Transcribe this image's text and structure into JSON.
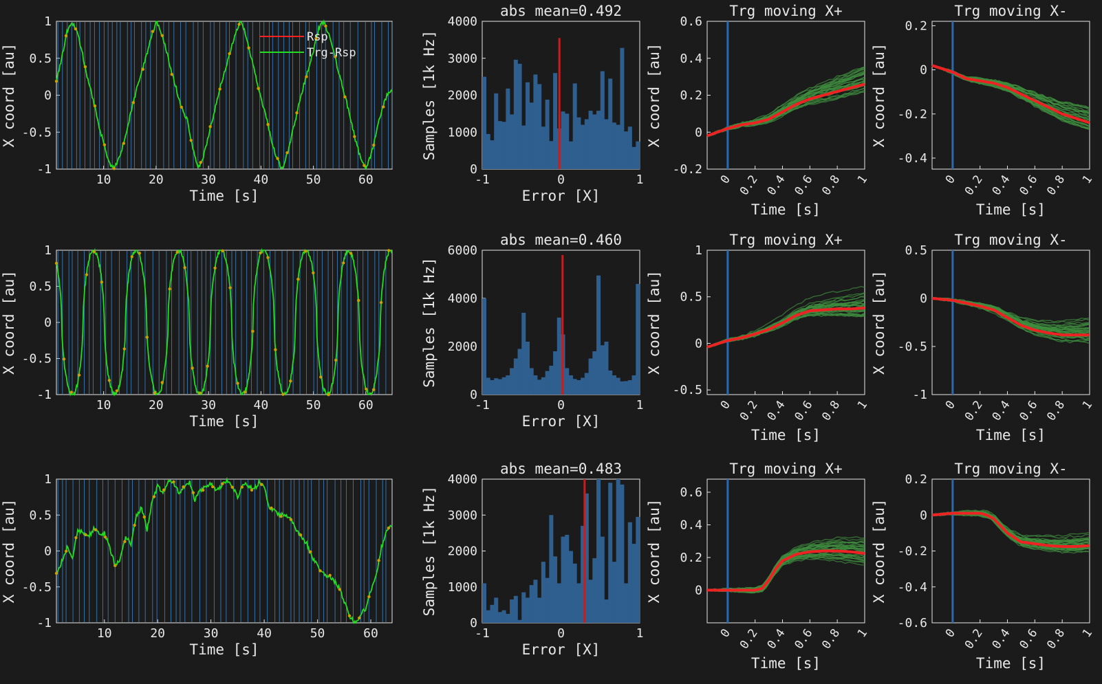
{
  "colors": {
    "background": "#1b1b1b",
    "axis": "#e8e8e8",
    "target_line": "#ff2020",
    "response_line": "#22dd22",
    "sample_marker": "#c8a000",
    "event_line": "#3a7bb8",
    "hist_bar": "#2e5f8e",
    "hist_mean": "#c22020",
    "trial_trace": "#3f8f3f",
    "mean_trace": "#ee2222",
    "onset_line": "#2a6ab0"
  },
  "chart_data": [
    {
      "id": "r1-trace",
      "type": "line",
      "xlabel": "Time [s]",
      "ylabel": "X coord [au]",
      "xlim": [
        1,
        65
      ],
      "ylim": [
        -1,
        1
      ],
      "xticks": [
        10,
        20,
        30,
        40,
        50,
        60
      ],
      "yticks": [
        -1,
        -0.5,
        0,
        0.5,
        1
      ],
      "yticklabels": [
        "-1",
        "-0.5",
        "0",
        "0.5",
        "1"
      ],
      "legend": [
        "Rsp",
        "Trg-Rsp"
      ],
      "legend_position": "top-center",
      "signal": {
        "kind": "triangle",
        "period": 16,
        "phase": 0
      },
      "series": [
        {
          "name": "Trg-Rsp",
          "x": [
            1,
            2,
            3,
            4,
            5,
            6,
            7,
            8,
            9,
            10,
            11,
            12,
            13,
            14,
            15,
            16,
            17,
            18,
            19,
            20,
            21,
            22,
            23,
            24,
            25,
            26,
            27,
            28,
            29,
            30,
            31,
            32,
            33,
            34,
            35,
            36,
            37,
            38,
            39,
            40,
            41,
            42,
            43,
            44,
            45,
            46,
            47,
            48,
            49,
            50,
            51,
            52,
            53,
            54,
            55,
            56,
            57,
            58,
            59,
            60,
            61,
            62,
            63,
            64,
            65
          ],
          "y": [
            0.2,
            0.5,
            0.85,
            1,
            0.85,
            0.55,
            0.2,
            -0.05,
            -0.4,
            -0.65,
            -0.9,
            -1,
            -0.85,
            -0.6,
            -0.3,
            0,
            0.25,
            0.5,
            0.75,
            1,
            0.85,
            0.6,
            0.3,
            0.05,
            -0.2,
            -0.35,
            -0.7,
            -1,
            -0.85,
            -0.55,
            -0.25,
            0.05,
            0.3,
            0.55,
            0.8,
            1,
            0.85,
            0.55,
            0.25,
            -0.05,
            -0.3,
            -0.6,
            -0.85,
            -1,
            -0.8,
            -0.5,
            -0.2,
            0.1,
            0.35,
            0.6,
            0.9,
            1,
            0.8,
            0.55,
            0.25,
            0,
            -0.3,
            -0.6,
            -0.85,
            -1,
            -0.8,
            -0.5,
            -0.2,
            0,
            0.05
          ]
        }
      ]
    },
    {
      "id": "r1-hist",
      "type": "bar",
      "title": "abs mean=0.492",
      "xlabel": "Error [X]",
      "ylabel": "Samples [1k Hz]",
      "xlim": [
        -1,
        1
      ],
      "ylim": [
        0,
        4000
      ],
      "xticks": [
        -1,
        0,
        1
      ],
      "yticks": [
        0,
        1000,
        2000,
        3000,
        4000
      ],
      "bins": 40,
      "values": [
        2500,
        950,
        780,
        2050,
        1300,
        1280,
        2180,
        1480,
        2960,
        2850,
        1180,
        2350,
        1800,
        2560,
        2300,
        1150,
        1880,
        760,
        2600,
        1100,
        1560,
        1500,
        750,
        2320,
        1400,
        1200,
        1350,
        1580,
        1480,
        1580,
        2650,
        1350,
        2450,
        1260,
        1200,
        3280,
        1020,
        1150,
        600,
        750
      ],
      "mean_marker": -0.02,
      "mean_peak": 3550
    },
    {
      "id": "r1-plus",
      "type": "line",
      "title": "Trg moving X+",
      "xlabel": "Time [s]",
      "ylabel": "X coord [au]",
      "xlim": [
        -0.15,
        1
      ],
      "ylim": [
        -0.2,
        0.6
      ],
      "xticks": [
        0,
        0.2,
        0.4,
        0.6,
        0.8,
        1
      ],
      "yticks": [
        -0.2,
        0,
        0.2,
        0.4,
        0.6
      ],
      "onset": 0,
      "mean_x": [
        -0.15,
        0,
        0.1,
        0.2,
        0.3,
        0.4,
        0.5,
        0.6,
        0.7,
        0.8,
        0.9,
        1
      ],
      "mean_y": [
        -0.02,
        0.02,
        0.04,
        0.05,
        0.07,
        0.11,
        0.15,
        0.18,
        0.2,
        0.22,
        0.24,
        0.26
      ],
      "trials": {
        "count": 30,
        "spread": 0.55,
        "seed": 11
      }
    },
    {
      "id": "r1-minus",
      "type": "line",
      "title": "Trg moving X-",
      "xlabel": "Time [s]",
      "ylabel": "X coord [au]",
      "xlim": [
        -0.15,
        1
      ],
      "ylim": [
        -0.45,
        0.22
      ],
      "xticks": [
        0,
        0.2,
        0.4,
        0.6,
        0.8,
        1
      ],
      "yticks": [
        -0.4,
        -0.2,
        0,
        0.2
      ],
      "onset": 0,
      "mean_x": [
        -0.15,
        0,
        0.1,
        0.2,
        0.3,
        0.4,
        0.5,
        0.6,
        0.7,
        0.8,
        0.9,
        1
      ],
      "mean_y": [
        0.02,
        -0.01,
        -0.04,
        -0.05,
        -0.06,
        -0.08,
        -0.11,
        -0.14,
        -0.17,
        -0.2,
        -0.22,
        -0.24
      ],
      "trials": {
        "count": 30,
        "spread": 0.6,
        "seed": 23
      }
    },
    {
      "id": "r2-trace",
      "type": "line",
      "xlabel": "Time [s]",
      "ylabel": "X coord [au]",
      "xlim": [
        1,
        65
      ],
      "ylim": [
        -1,
        1
      ],
      "xticks": [
        10,
        20,
        30,
        40,
        50,
        60
      ],
      "yticks": [
        -1,
        -0.5,
        0,
        0.5,
        1
      ],
      "yticklabels": [
        "-1",
        "-0.5",
        "0",
        "0.5",
        "1"
      ],
      "signal": {
        "kind": "peaked",
        "period": 8.1,
        "phase": 0
      }
    },
    {
      "id": "r2-hist",
      "type": "bar",
      "title": "abs mean=0.460",
      "xlabel": "Error [X]",
      "ylabel": "Samples [1k Hz]",
      "xlim": [
        -1,
        1
      ],
      "ylim": [
        0,
        6000
      ],
      "xticks": [
        -1,
        0,
        1
      ],
      "yticks": [
        0,
        2000,
        4000,
        6000
      ],
      "bins": 40,
      "values": [
        4000,
        700,
        600,
        680,
        640,
        720,
        800,
        1100,
        1500,
        1900,
        3400,
        2200,
        1100,
        800,
        620,
        720,
        980,
        1200,
        1800,
        3200,
        2500,
        1100,
        800,
        650,
        600,
        700,
        900,
        1500,
        1800,
        4950,
        2050,
        2200,
        1000,
        800,
        700,
        550,
        560,
        600,
        800,
        4600
      ],
      "mean_marker": 0.02,
      "mean_peak": 5800
    },
    {
      "id": "r2-plus",
      "type": "line",
      "title": "Trg moving X+",
      "xlabel": "Time [s]",
      "ylabel": "X coord [au]",
      "xlim": [
        -0.15,
        1
      ],
      "ylim": [
        -0.55,
        1
      ],
      "xticks": [
        0,
        0.2,
        0.4,
        0.6,
        0.8,
        1
      ],
      "yticks": [
        -0.5,
        0,
        0.5,
        1
      ],
      "onset": 0,
      "mean_x": [
        -0.15,
        0,
        0.1,
        0.2,
        0.3,
        0.4,
        0.5,
        0.6,
        0.7,
        0.8,
        0.9,
        1
      ],
      "mean_y": [
        -0.04,
        0.03,
        0.06,
        0.1,
        0.15,
        0.22,
        0.3,
        0.35,
        0.36,
        0.37,
        0.37,
        0.38
      ],
      "trials": {
        "count": 30,
        "spread": 0.9,
        "seed": 37
      }
    },
    {
      "id": "r2-minus",
      "type": "line",
      "title": "Trg moving X-",
      "xlabel": "Time [s]",
      "ylabel": "X coord [au]",
      "xlim": [
        -0.15,
        1
      ],
      "ylim": [
        -1,
        0.5
      ],
      "xticks": [
        0,
        0.2,
        0.4,
        0.6,
        0.8,
        1
      ],
      "yticks": [
        -1,
        -0.5,
        0,
        0.5
      ],
      "onset": 0,
      "mean_x": [
        -0.15,
        0,
        0.1,
        0.2,
        0.3,
        0.4,
        0.5,
        0.6,
        0.7,
        0.8,
        0.9,
        1
      ],
      "mean_y": [
        0,
        -0.02,
        -0.05,
        -0.08,
        -0.12,
        -0.2,
        -0.28,
        -0.33,
        -0.36,
        -0.38,
        -0.38,
        -0.38
      ],
      "trials": {
        "count": 30,
        "spread": 0.85,
        "seed": 41
      }
    },
    {
      "id": "r3-trace",
      "type": "line",
      "xlabel": "Time [s]",
      "ylabel": "X coord [au]",
      "xlim": [
        1,
        64
      ],
      "ylim": [
        -1,
        1
      ],
      "xticks": [
        10,
        20,
        30,
        40,
        50,
        60
      ],
      "yticks": [
        -1,
        -0.5,
        0,
        0.5,
        1
      ],
      "yticklabels": [
        "-1",
        "-0.5",
        "0",
        "0.5",
        "1"
      ],
      "series": [
        {
          "name": "Trg-Rsp",
          "x": [
            1,
            2,
            3,
            4,
            5,
            6,
            7,
            8,
            9,
            10,
            11,
            12,
            13,
            14,
            15,
            16,
            17,
            18,
            19,
            20,
            21,
            22,
            23,
            24,
            25,
            26,
            27,
            28,
            29,
            30,
            31,
            32,
            33,
            34,
            35,
            36,
            37,
            38,
            39,
            40,
            41,
            42,
            43,
            44,
            45,
            46,
            47,
            48,
            49,
            50,
            51,
            52,
            53,
            54,
            55,
            56,
            57,
            58,
            59,
            60,
            61,
            62,
            63,
            64
          ],
          "y": [
            -0.3,
            -0.15,
            0.05,
            -0.1,
            0.3,
            0.25,
            0.2,
            0.3,
            0.25,
            0.25,
            0.05,
            -0.2,
            -0.1,
            0.2,
            0.1,
            0.5,
            0.6,
            0.3,
            0.7,
            0.9,
            0.8,
            1,
            0.95,
            0.8,
            0.9,
            0.95,
            0.7,
            0.85,
            0.9,
            0.95,
            0.85,
            0.9,
            1,
            0.9,
            0.75,
            0.95,
            0.9,
            0.85,
            0.95,
            0.9,
            0.6,
            0.55,
            0.5,
            0.5,
            0.45,
            0.3,
            0.2,
            0.1,
            -0.1,
            -0.2,
            -0.3,
            -0.35,
            -0.4,
            -0.5,
            -0.7,
            -0.9,
            -1,
            -0.9,
            -0.8,
            -0.55,
            -0.35,
            0.05,
            0.3,
            0.35
          ]
        }
      ]
    },
    {
      "id": "r3-hist",
      "type": "bar",
      "title": "abs mean=0.483",
      "xlabel": "Error [X]",
      "ylabel": "Samples [1k Hz]",
      "xlim": [
        -1,
        1
      ],
      "ylim": [
        0,
        4000
      ],
      "xticks": [
        -1,
        0,
        1
      ],
      "yticks": [
        0,
        1000,
        2000,
        3000,
        4000
      ],
      "bins": 40,
      "values": [
        1100,
        350,
        500,
        700,
        300,
        350,
        250,
        650,
        750,
        80,
        850,
        700,
        1050,
        1200,
        700,
        1700,
        1250,
        3000,
        1850,
        1100,
        2400,
        2450,
        2000,
        1650,
        1100,
        2700,
        3600,
        1200,
        1800,
        4200,
        2400,
        650,
        3900,
        1700,
        4100,
        3850,
        1100,
        2800,
        2200,
        2950
      ],
      "mean_marker": 0.3,
      "mean_peak": 4100
    },
    {
      "id": "r3-plus",
      "type": "line",
      "title": "Trg moving X+",
      "xlabel": "Time [s]",
      "ylabel": "X coord [au]",
      "xlim": [
        -0.15,
        1
      ],
      "ylim": [
        -0.2,
        0.68
      ],
      "xticks": [
        0,
        0.2,
        0.4,
        0.6,
        0.8,
        1
      ],
      "yticks": [
        0,
        0.2,
        0.4,
        0.6
      ],
      "onset": 0,
      "mean_x": [
        -0.15,
        0,
        0.1,
        0.2,
        0.25,
        0.3,
        0.35,
        0.4,
        0.5,
        0.6,
        0.7,
        0.8,
        0.9,
        1
      ],
      "mean_y": [
        0,
        0,
        0,
        0,
        0.01,
        0.06,
        0.13,
        0.18,
        0.22,
        0.235,
        0.24,
        0.24,
        0.235,
        0.225
      ],
      "trials": {
        "count": 30,
        "spread": 0.65,
        "seed": 53
      }
    },
    {
      "id": "r3-minus",
      "type": "line",
      "title": "Trg moving X-",
      "xlabel": "Time [s]",
      "ylabel": "X coord [au]",
      "xlim": [
        -0.15,
        1
      ],
      "ylim": [
        -0.6,
        0.2
      ],
      "xticks": [
        0,
        0.2,
        0.4,
        0.6,
        0.8,
        1
      ],
      "yticks": [
        -0.6,
        -0.4,
        -0.2,
        0,
        0.2
      ],
      "onset": 0,
      "mean_x": [
        -0.15,
        0,
        0.1,
        0.2,
        0.25,
        0.3,
        0.35,
        0.4,
        0.5,
        0.6,
        0.7,
        0.8,
        0.9,
        1
      ],
      "mean_y": [
        0,
        0.01,
        0.01,
        0.01,
        0,
        -0.02,
        -0.06,
        -0.1,
        -0.15,
        -0.16,
        -0.17,
        -0.175,
        -0.175,
        -0.17
      ],
      "trials": {
        "count": 30,
        "spread": 0.55,
        "seed": 67
      }
    }
  ]
}
